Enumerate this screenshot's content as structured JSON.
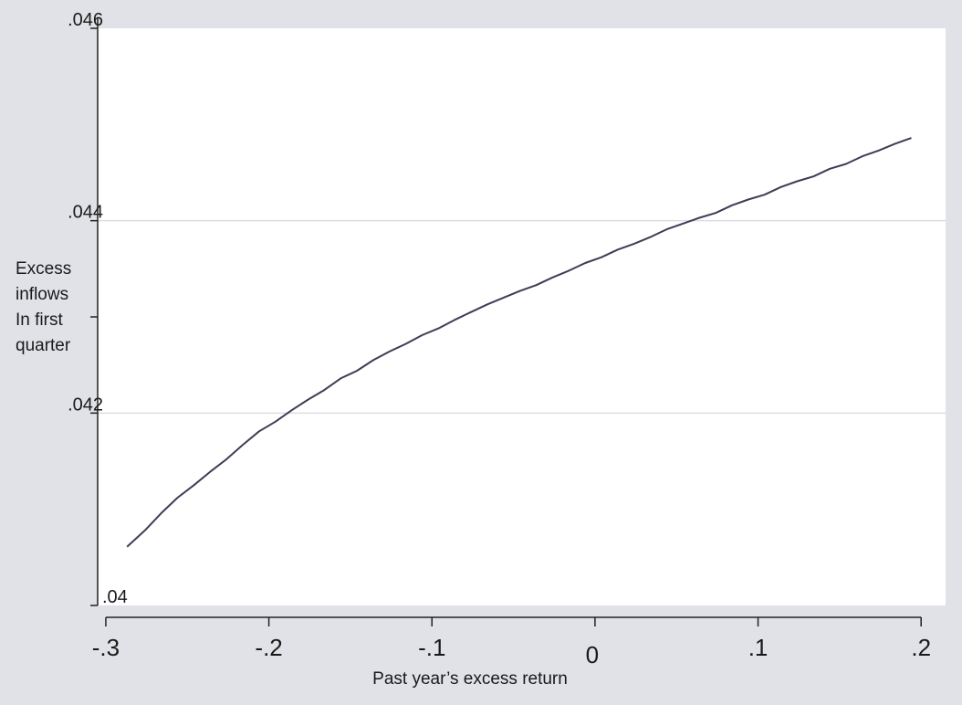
{
  "chart_data": {
    "type": "line",
    "title": "",
    "xlabel": "Past year’s excess return",
    "ylabel_lines": [
      "Excess",
      "inflows",
      "In first",
      "quarter"
    ],
    "xlim": [
      -0.305,
      0.215
    ],
    "ylim": [
      0.04,
      0.046
    ],
    "x_ticks": [
      -0.3,
      -0.2,
      -0.1,
      0,
      0.1,
      0.2
    ],
    "x_tick_labels": [
      "-.3",
      "-.2",
      "-.1",
      "0",
      ".1",
      ".2"
    ],
    "y_ticks": [
      0.04,
      0.042,
      0.043,
      0.044,
      0.046
    ],
    "y_tick_labels": [
      ".04",
      ".042",
      "",
      ".044",
      ".046"
    ],
    "gridlines_y": [
      0.042,
      0.044
    ],
    "grid": true,
    "colors": {
      "line": "#3d3d55",
      "background": "#e0e2e7",
      "plot_area": "#ffffff",
      "grid": "#dcdde2"
    },
    "series": [
      {
        "x": [
          -0.287,
          -0.276,
          -0.266,
          -0.256,
          -0.246,
          -0.236,
          -0.226,
          -0.216,
          -0.206,
          -0.196,
          -0.186,
          -0.176,
          -0.166,
          -0.156,
          -0.146,
          -0.136,
          -0.126,
          -0.116,
          -0.106,
          -0.096,
          -0.086,
          -0.076,
          -0.066,
          -0.056,
          -0.046,
          -0.036,
          -0.026,
          -0.016,
          -0.006,
          0.004,
          0.014,
          0.024,
          0.034,
          0.044,
          0.054,
          0.064,
          0.074,
          0.084,
          0.094,
          0.104,
          0.114,
          0.124,
          0.134,
          0.144,
          0.154,
          0.164,
          0.174,
          0.184,
          0.194
        ],
        "y": [
          0.04061,
          0.04078,
          0.04096,
          0.04112,
          0.04125,
          0.04139,
          0.04152,
          0.04167,
          0.04181,
          0.04191,
          0.04203,
          0.04214,
          0.04224,
          0.04236,
          0.04244,
          0.04255,
          0.04264,
          0.04272,
          0.04281,
          0.04288,
          0.04297,
          0.04305,
          0.04313,
          0.0432,
          0.04327,
          0.04333,
          0.04341,
          0.04348,
          0.04356,
          0.04362,
          0.0437,
          0.04376,
          0.04383,
          0.04391,
          0.04397,
          0.04403,
          0.04408,
          0.04416,
          0.04422,
          0.04427,
          0.04435,
          0.04441,
          0.04446,
          0.04454,
          0.04459,
          0.04467,
          0.04473,
          0.0448,
          0.04486
        ]
      }
    ]
  }
}
